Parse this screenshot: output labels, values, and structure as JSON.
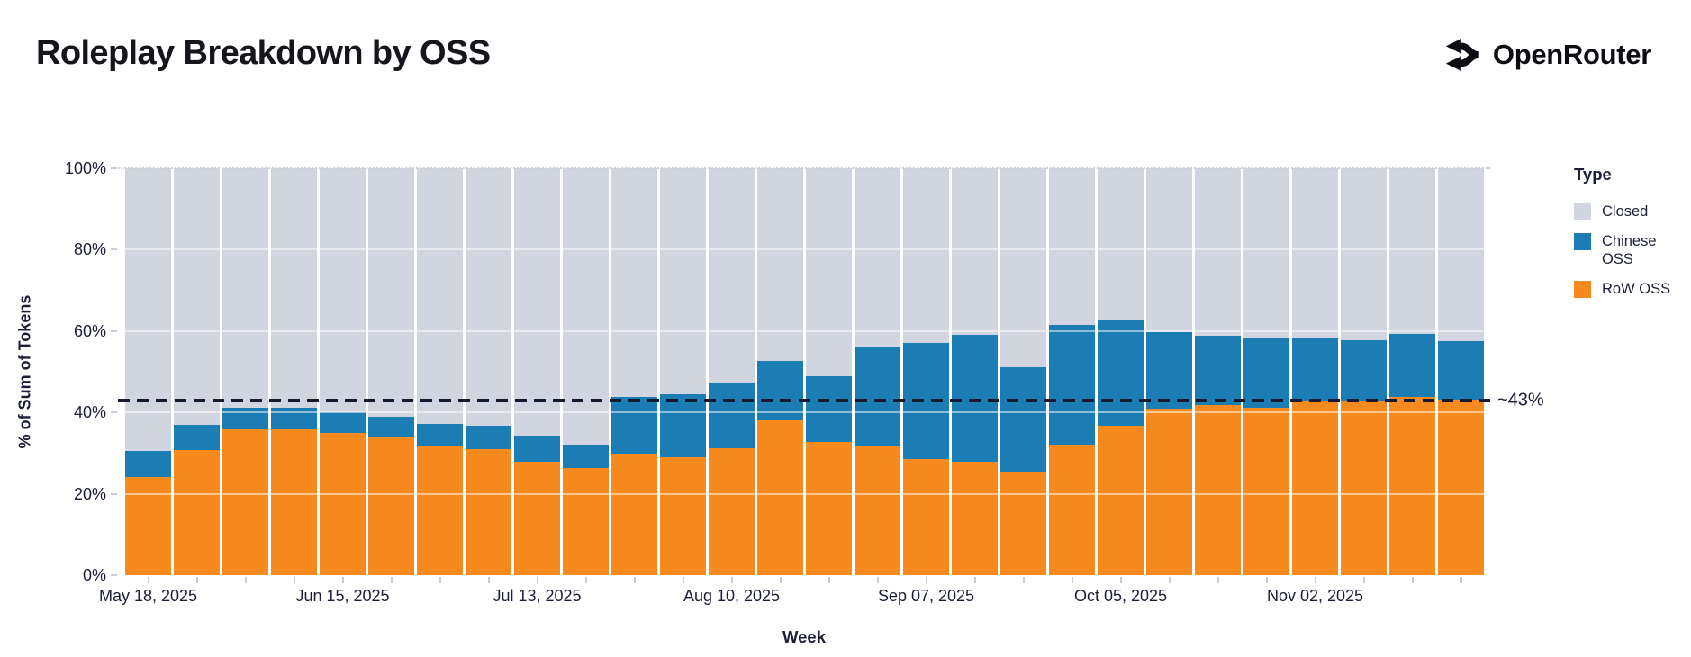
{
  "header": {
    "title": "Roleplay Breakdown by OSS",
    "brand": "OpenRouter"
  },
  "colors": {
    "closed": "#d1d5df",
    "chinese_oss": "#1c7db5",
    "row_oss": "#f68a1f",
    "axis_text": "#1c1e38",
    "threshold_line": "#171931"
  },
  "chart_data": {
    "type": "bar",
    "stacked": true,
    "unit": "%",
    "title": "Roleplay Breakdown by OSS",
    "xlabel": "Week",
    "ylabel": "% of Sum of Tokens",
    "ylim": [
      0,
      100
    ],
    "grid": "horizontal-white",
    "y_tick_labels": [
      "0%",
      "20%",
      "40%",
      "60%",
      "80%",
      "100%"
    ],
    "y_tick_values": [
      0,
      20,
      40,
      60,
      80,
      100
    ],
    "x_tick_label_every": 4,
    "categories": [
      "May 18, 2025",
      "May 25, 2025",
      "Jun 01, 2025",
      "Jun 08, 2025",
      "Jun 15, 2025",
      "Jun 22, 2025",
      "Jun 29, 2025",
      "Jul 06, 2025",
      "Jul 13, 2025",
      "Jul 20, 2025",
      "Jul 27, 2025",
      "Aug 03, 2025",
      "Aug 10, 2025",
      "Aug 17, 2025",
      "Aug 24, 2025",
      "Aug 31, 2025",
      "Sep 07, 2025",
      "Sep 14, 2025",
      "Sep 21, 2025",
      "Sep 28, 2025",
      "Oct 05, 2025",
      "Oct 12, 2025",
      "Oct 19, 2025",
      "Oct 26, 2025",
      "Nov 02, 2025",
      "Nov 09, 2025",
      "Nov 16, 2025",
      "Nov 23, 2025"
    ],
    "series": [
      {
        "name": "Closed",
        "color": "#d1d5df",
        "values": [
          69.4,
          63.1,
          58.9,
          58.9,
          60.0,
          61.1,
          62.8,
          63.3,
          65.7,
          67.9,
          56.1,
          55.5,
          52.6,
          47.4,
          51.0,
          43.9,
          43.0,
          41.0,
          48.9,
          38.5,
          37.1,
          40.2,
          41.2,
          41.8,
          41.6,
          42.3,
          40.7,
          42.4
        ]
      },
      {
        "name": "Chinese OSS",
        "color": "#1c7db5",
        "values": [
          6.4,
          6.1,
          5.3,
          5.3,
          5.1,
          4.9,
          5.6,
          5.7,
          6.4,
          5.7,
          14.0,
          15.5,
          16.1,
          14.6,
          16.3,
          24.3,
          28.4,
          31.1,
          25.7,
          29.4,
          26.1,
          18.9,
          16.9,
          17.1,
          15.8,
          14.7,
          15.6,
          14.5
        ]
      },
      {
        "name": "RoW OSS",
        "color": "#f68a1f",
        "values": [
          24.2,
          30.8,
          35.8,
          35.8,
          34.9,
          34.0,
          31.6,
          31.0,
          27.9,
          26.4,
          29.9,
          29.0,
          31.3,
          38.0,
          32.7,
          31.8,
          28.6,
          27.9,
          25.4,
          32.1,
          36.8,
          40.9,
          41.9,
          41.1,
          42.6,
          43.0,
          43.7,
          43.1
        ]
      }
    ],
    "legend": {
      "title": "Type",
      "position": "right",
      "entries": [
        "Closed",
        "Chinese OSS",
        "RoW OSS"
      ]
    },
    "annotation": {
      "label": "~43%",
      "value": 43
    }
  }
}
